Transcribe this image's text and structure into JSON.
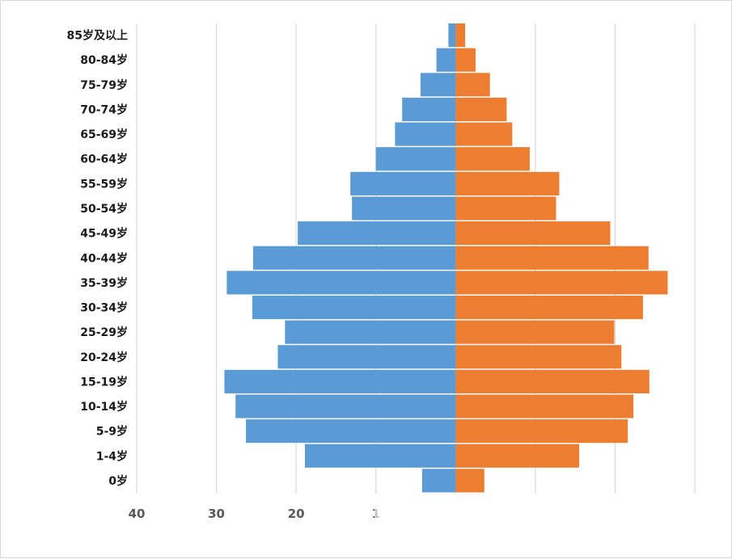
{
  "chart_data": {
    "type": "bar",
    "orientation": "horizontal-population-pyramid",
    "categories": [
      "0岁",
      "1-4岁",
      "5-9岁",
      "10-14岁",
      "15-19岁",
      "20-24岁",
      "25-29岁",
      "30-34岁",
      "35-39岁",
      "40-44岁",
      "45-49岁",
      "50-54岁",
      "55-59岁",
      "60-64岁",
      "65-69岁",
      "70-74岁",
      "75-79岁",
      "80-84岁",
      "85岁及以上"
    ],
    "series": [
      {
        "color": "#5b9bd5",
        "values": [
          4.2,
          18.9,
          26.3,
          27.6,
          29.0,
          22.3,
          21.4,
          25.5,
          28.7,
          25.4,
          19.8,
          13.0,
          13.2,
          10.0,
          7.6,
          6.7,
          4.4,
          2.4,
          0.9
        ]
      },
      {
        "color": "#ed7d31",
        "values": [
          3.6,
          15.5,
          21.6,
          22.3,
          24.3,
          20.8,
          19.9,
          23.5,
          26.6,
          24.2,
          19.4,
          12.6,
          13.0,
          9.3,
          7.1,
          6.4,
          4.3,
          2.5,
          1.2
        ]
      }
    ],
    "x_ticks": [
      "40",
      "30",
      "20",
      "1"
    ],
    "xlim": [
      -40,
      30
    ],
    "grid": true,
    "legend": "none"
  }
}
